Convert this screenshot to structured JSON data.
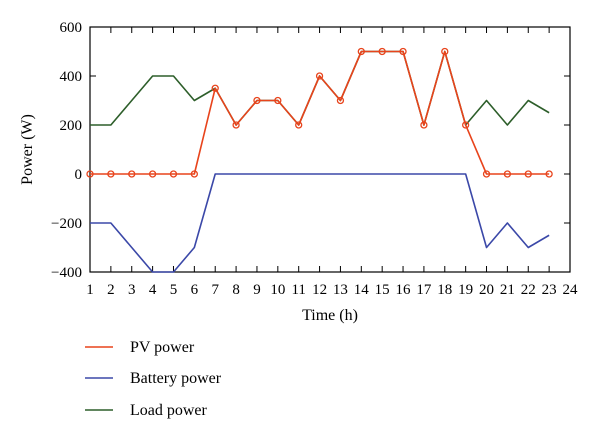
{
  "chart_data": {
    "type": "line",
    "xlabel": "Time (h)",
    "ylabel": "Power (W)",
    "xlim": [
      1,
      24
    ],
    "ylim": [
      -400,
      600
    ],
    "x_ticks": [
      1,
      2,
      3,
      4,
      5,
      6,
      7,
      8,
      9,
      10,
      11,
      12,
      13,
      14,
      15,
      16,
      17,
      18,
      19,
      20,
      21,
      22,
      23,
      24
    ],
    "y_ticks": [
      -400,
      -200,
      0,
      200,
      400,
      600
    ],
    "grid": false,
    "legend_position": "below",
    "x": [
      1,
      2,
      3,
      4,
      5,
      6,
      7,
      8,
      9,
      10,
      11,
      12,
      13,
      14,
      15,
      16,
      17,
      18,
      19,
      20,
      21,
      22,
      23
    ],
    "series": [
      {
        "name": "PV power",
        "color": "#e8441c",
        "marker": "circle",
        "values": [
          0,
          0,
          0,
          0,
          0,
          0,
          350,
          200,
          300,
          300,
          200,
          400,
          300,
          500,
          500,
          500,
          200,
          500,
          200,
          0,
          0,
          0,
          0
        ]
      },
      {
        "name": "Battery power",
        "color": "#3b48a8",
        "marker": "none",
        "values": [
          -200,
          -200,
          -300,
          -400,
          -400,
          -300,
          0,
          0,
          0,
          0,
          0,
          0,
          0,
          0,
          0,
          0,
          0,
          0,
          0,
          -300,
          -200,
          -300,
          -250
        ]
      },
      {
        "name": "Load power",
        "color": "#2d5e2a",
        "marker": "none",
        "values": [
          200,
          200,
          300,
          400,
          400,
          300,
          350,
          200,
          300,
          300,
          200,
          400,
          300,
          500,
          500,
          500,
          200,
          500,
          200,
          300,
          200,
          300,
          250
        ]
      }
    ]
  }
}
